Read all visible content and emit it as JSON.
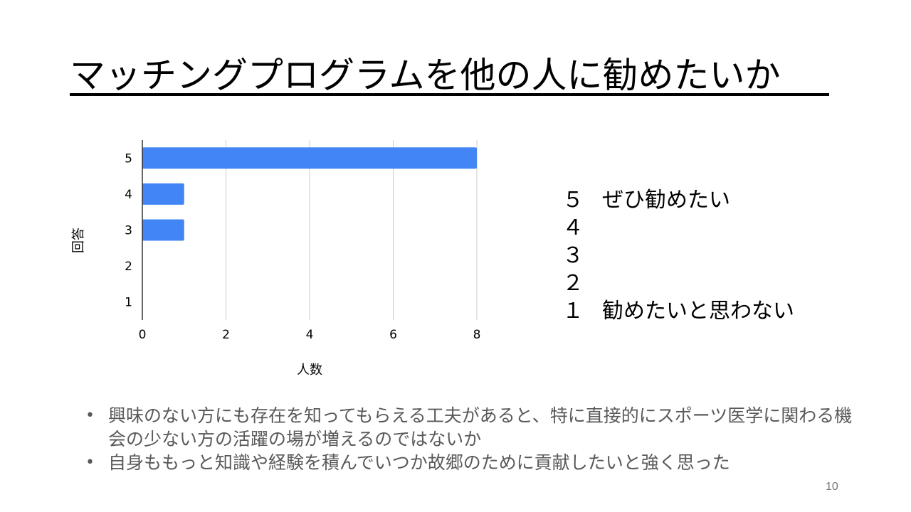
{
  "slide": {
    "title": "マッチングプログラムを他の人に勧めたいか",
    "page_number": "10"
  },
  "colors": {
    "bar": "#4285f4",
    "grid": "#cccccc",
    "axis": "#333333"
  },
  "chart_data": {
    "type": "bar",
    "orientation": "horizontal",
    "categories": [
      "5",
      "4",
      "3",
      "2",
      "1"
    ],
    "values": [
      8,
      1,
      1,
      0,
      0
    ],
    "xlabel": "人数",
    "ylabel": "回答",
    "xlim": [
      0,
      8
    ],
    "xticks": [
      "0",
      "2",
      "4",
      "6",
      "8"
    ],
    "grid": true
  },
  "legend": [
    {
      "num": "５",
      "text": "ぜひ勧めたい"
    },
    {
      "num": "４",
      "text": ""
    },
    {
      "num": "３",
      "text": ""
    },
    {
      "num": "２",
      "text": ""
    },
    {
      "num": "１",
      "text": "勧めたいと思わない"
    }
  ],
  "bullets": [
    "興味のない方にも存在を知ってもらえる工夫があると、特に直接的にスポーツ医学に関わる機会の少ない方の活躍の場が増えるのではないか",
    "自身ももっと知識や経験を積んでいつか故郷のために貢献したいと強く思った"
  ],
  "bullet_symbol": "•"
}
